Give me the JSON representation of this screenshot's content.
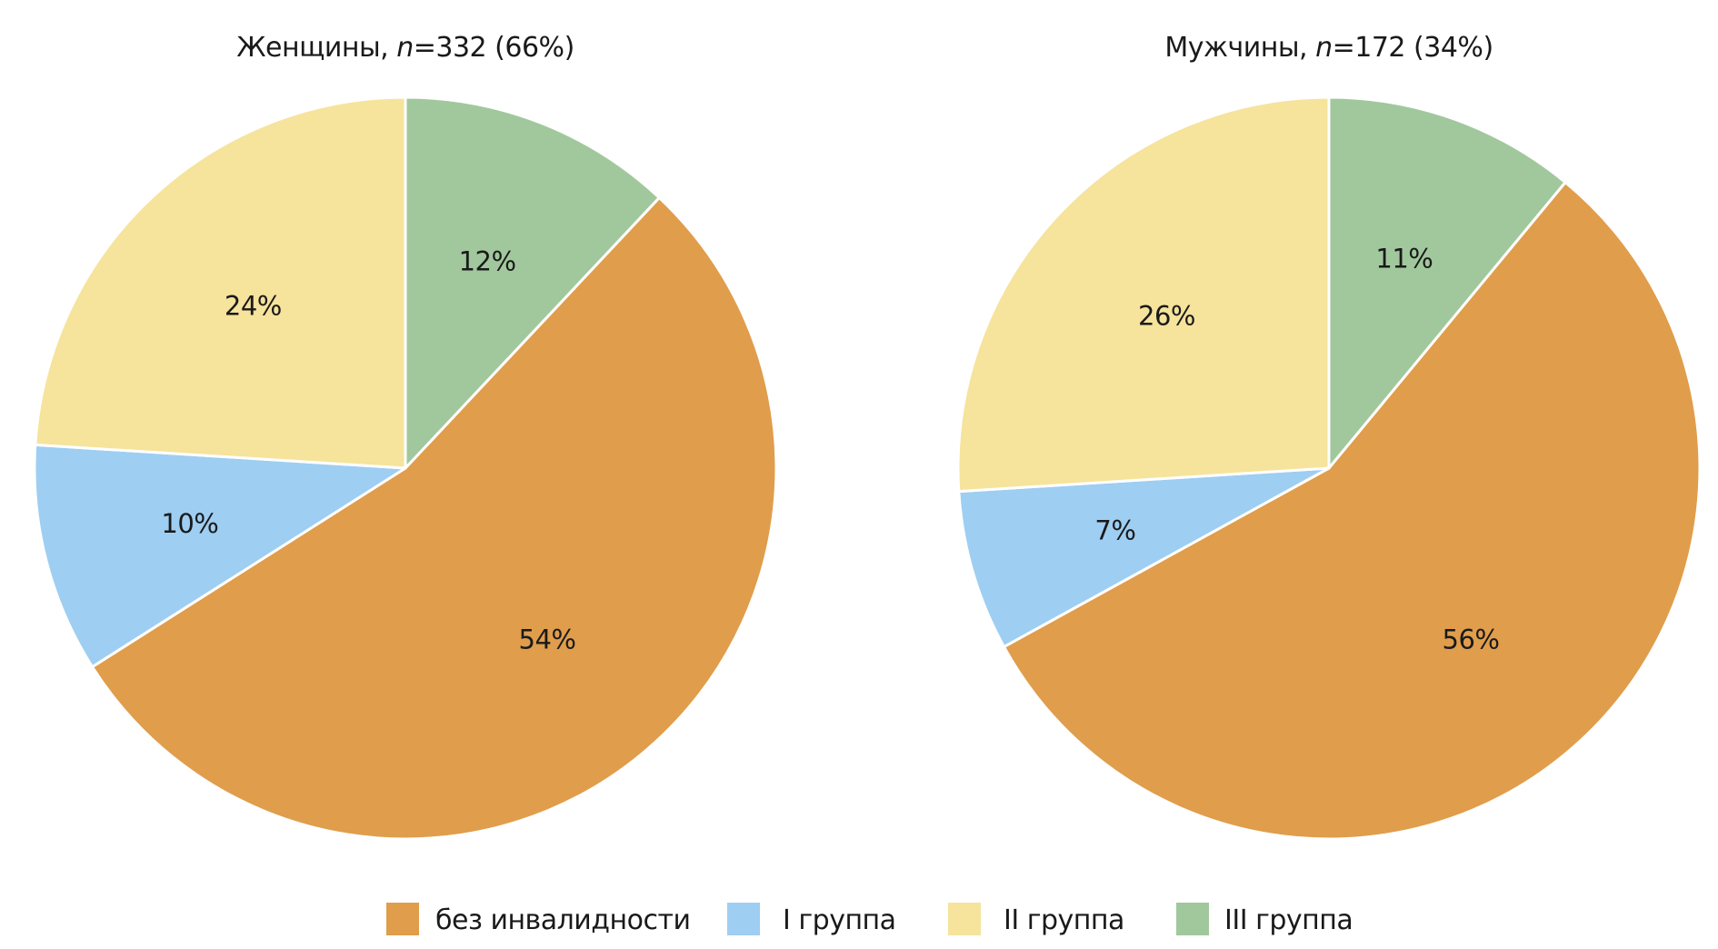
{
  "legend": [
    {
      "label": "без инвалидности",
      "color": "#E09D4B"
    },
    {
      "label": "I группа",
      "color": "#9ECEF2"
    },
    {
      "label": "II группа",
      "color": "#F6E39C"
    },
    {
      "label": "III группа",
      "color": "#A1C89C"
    }
  ],
  "chart_data": [
    {
      "type": "pie",
      "title_prefix": "Женщины, ",
      "title_italic": "n",
      "title_suffix": "=332 (66%)",
      "start_angle_deg": 0,
      "direction": "clockwise",
      "categories": [
        "без инвалидности",
        "I группа",
        "II группа",
        "III группа"
      ],
      "values": [
        54,
        10,
        24,
        12
      ],
      "order": [
        3,
        0,
        1,
        2
      ],
      "labels": [
        "54%",
        "10%",
        "24%",
        "12%"
      ]
    },
    {
      "type": "pie",
      "title_prefix": "Мужчины, ",
      "title_italic": "n",
      "title_suffix": "=172 (34%)",
      "start_angle_deg": 0,
      "direction": "clockwise",
      "categories": [
        "без инвалидности",
        "I группа",
        "II группа",
        "III группа"
      ],
      "values": [
        56,
        7,
        26,
        11
      ],
      "order": [
        3,
        0,
        1,
        2
      ],
      "labels": [
        "56%",
        "7%",
        "26%",
        "11%"
      ]
    }
  ]
}
